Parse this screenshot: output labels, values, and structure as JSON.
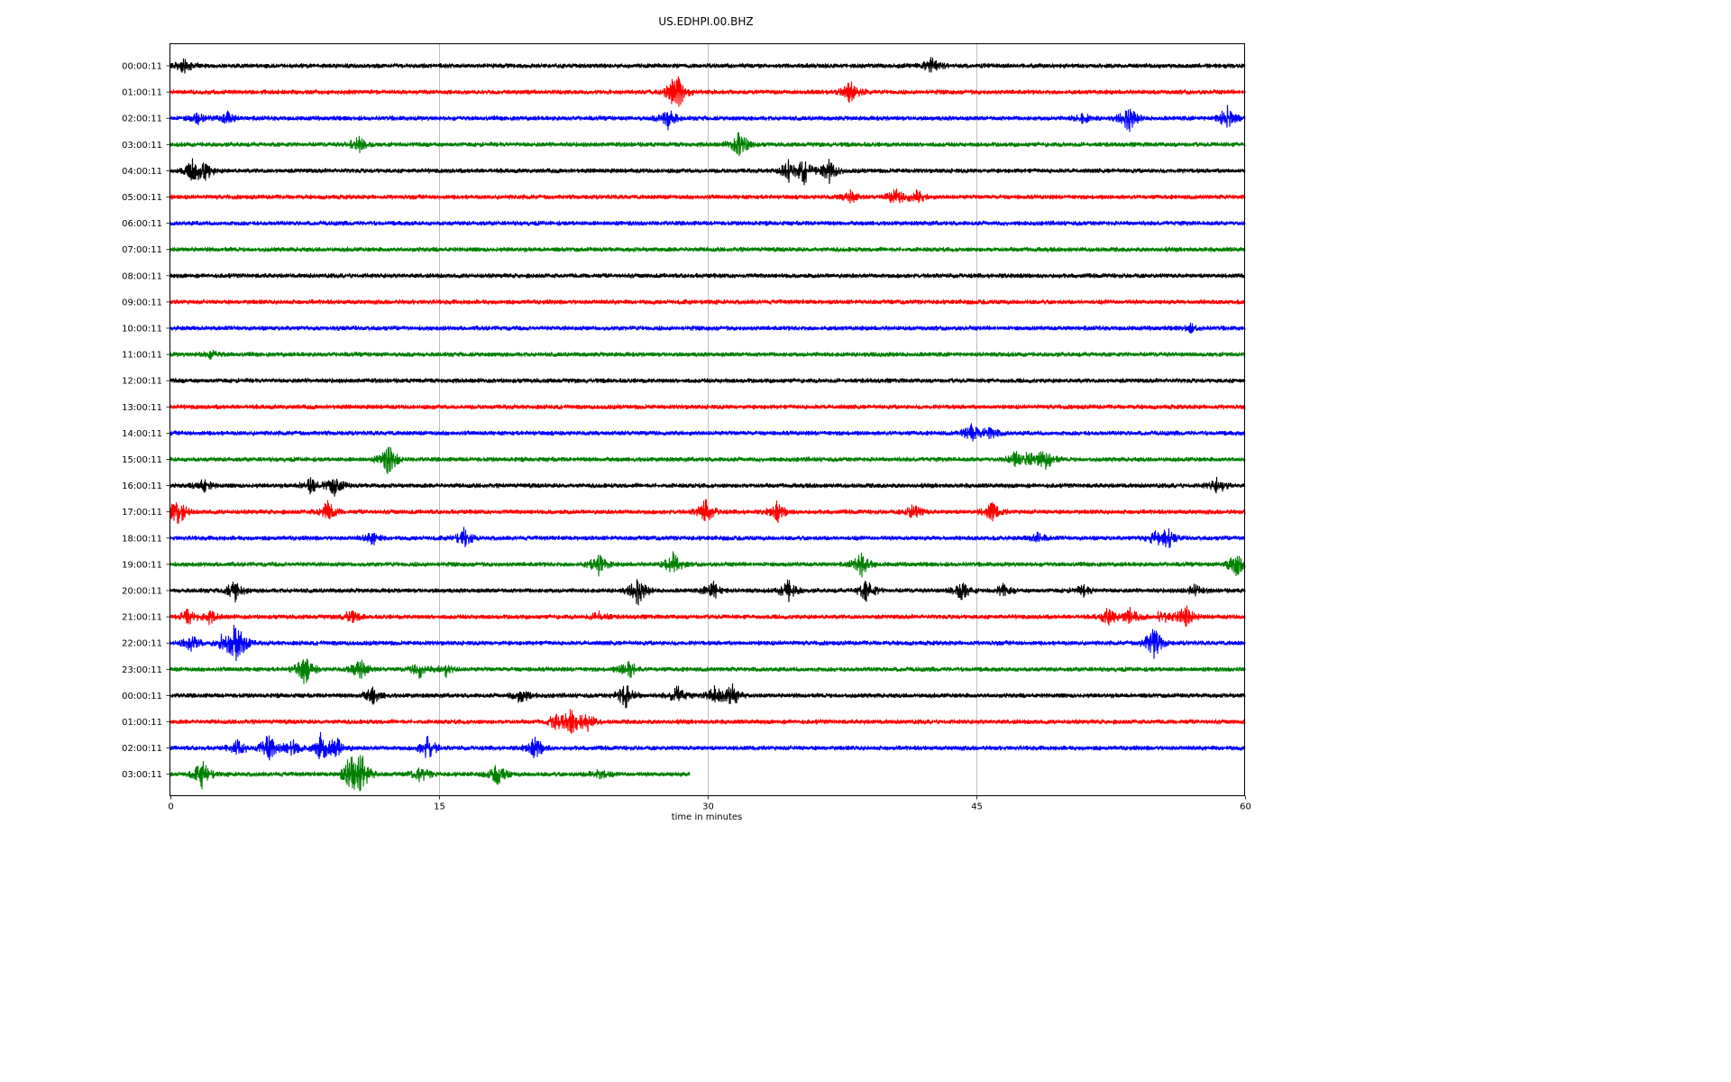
{
  "chart_data": {
    "type": "line",
    "title": "US.EDHPI.00.BHZ",
    "xlabel": "time in minutes",
    "ylabel": "",
    "xlim": [
      0,
      60
    ],
    "x_ticks": [
      0,
      15,
      30,
      45,
      60
    ],
    "x_tick_labels": [
      "0",
      "15",
      "30",
      "45",
      "60"
    ],
    "grid": "vertical lines at 15, 30, 45",
    "legend": "none",
    "color_cycle": [
      "#000000",
      "#ff0000",
      "#0000ff",
      "#008000"
    ],
    "rows": [
      {
        "label": "00:00:11",
        "color": "#000000",
        "end_minute": 60,
        "events": [
          [
            0.8,
            10
          ],
          [
            42.5,
            9
          ]
        ]
      },
      {
        "label": "01:00:11",
        "color": "#ff0000",
        "end_minute": 60,
        "events": [
          [
            28.0,
            9
          ],
          [
            28.4,
            15
          ],
          [
            38.0,
            13
          ]
        ]
      },
      {
        "label": "02:00:11",
        "color": "#0000ff",
        "end_minute": 60,
        "events": [
          [
            1.5,
            6
          ],
          [
            3.2,
            7
          ],
          [
            27.8,
            12
          ],
          [
            51.0,
            6
          ],
          [
            53.5,
            15
          ],
          [
            59.0,
            14
          ]
        ]
      },
      {
        "label": "03:00:11",
        "color": "#008000",
        "end_minute": 60,
        "events": [
          [
            10.5,
            10
          ],
          [
            31.8,
            16
          ]
        ]
      },
      {
        "label": "04:00:11",
        "color": "#000000",
        "end_minute": 60,
        "events": [
          [
            1.3,
            13
          ],
          [
            2.0,
            9
          ],
          [
            34.5,
            11
          ],
          [
            35.4,
            14
          ],
          [
            36.8,
            13
          ]
        ]
      },
      {
        "label": "05:00:11",
        "color": "#ff0000",
        "end_minute": 60,
        "events": [
          [
            38.0,
            7
          ],
          [
            40.5,
            10
          ],
          [
            41.7,
            8
          ]
        ]
      },
      {
        "label": "06:00:11",
        "color": "#0000ff",
        "end_minute": 60,
        "events": []
      },
      {
        "label": "07:00:11",
        "color": "#008000",
        "end_minute": 60,
        "events": []
      },
      {
        "label": "08:00:11",
        "color": "#000000",
        "end_minute": 60,
        "events": []
      },
      {
        "label": "09:00:11",
        "color": "#ff0000",
        "end_minute": 60,
        "events": []
      },
      {
        "label": "10:00:11",
        "color": "#0000ff",
        "end_minute": 60,
        "events": [
          [
            57.0,
            4
          ]
        ]
      },
      {
        "label": "11:00:11",
        "color": "#008000",
        "end_minute": 60,
        "events": [
          [
            2.3,
            4
          ]
        ]
      },
      {
        "label": "12:00:11",
        "color": "#000000",
        "end_minute": 60,
        "events": []
      },
      {
        "label": "13:00:11",
        "color": "#ff0000",
        "end_minute": 60,
        "events": []
      },
      {
        "label": "14:00:11",
        "color": "#0000ff",
        "end_minute": 60,
        "events": [
          [
            44.7,
            10
          ],
          [
            45.8,
            7
          ]
        ]
      },
      {
        "label": "15:00:11",
        "color": "#008000",
        "end_minute": 60,
        "events": [
          [
            12.2,
            18
          ],
          [
            47.2,
            8
          ],
          [
            48.0,
            9
          ],
          [
            48.9,
            12
          ]
        ]
      },
      {
        "label": "16:00:11",
        "color": "#000000",
        "end_minute": 60,
        "events": [
          [
            1.9,
            7
          ],
          [
            7.8,
            9
          ],
          [
            9.2,
            12
          ],
          [
            58.5,
            9
          ]
        ]
      },
      {
        "label": "17:00:11",
        "color": "#ff0000",
        "end_minute": 60,
        "events": [
          [
            0.4,
            18
          ],
          [
            8.8,
            12
          ],
          [
            29.9,
            14
          ],
          [
            33.9,
            11
          ],
          [
            41.5,
            9
          ],
          [
            45.9,
            11
          ]
        ]
      },
      {
        "label": "18:00:11",
        "color": "#0000ff",
        "end_minute": 60,
        "events": [
          [
            11.3,
            7
          ],
          [
            16.4,
            10
          ],
          [
            48.5,
            6
          ],
          [
            55.0,
            8
          ],
          [
            55.7,
            10
          ]
        ]
      },
      {
        "label": "19:00:11",
        "color": "#008000",
        "end_minute": 60,
        "events": [
          [
            23.9,
            14
          ],
          [
            28.1,
            15
          ],
          [
            38.6,
            13
          ],
          [
            59.5,
            14
          ]
        ]
      },
      {
        "label": "20:00:11",
        "color": "#000000",
        "end_minute": 60,
        "events": [
          [
            3.6,
            12
          ],
          [
            26.1,
            16
          ],
          [
            30.3,
            11
          ],
          [
            34.5,
            12
          ],
          [
            38.9,
            14
          ],
          [
            44.2,
            12
          ],
          [
            46.5,
            7
          ],
          [
            51.0,
            6
          ],
          [
            57.2,
            6
          ]
        ]
      },
      {
        "label": "21:00:11",
        "color": "#ff0000",
        "end_minute": 60,
        "events": [
          [
            1.0,
            8
          ],
          [
            2.2,
            7
          ],
          [
            10.1,
            7
          ],
          [
            24.0,
            6
          ],
          [
            52.4,
            10
          ],
          [
            53.6,
            9
          ],
          [
            55.4,
            8
          ],
          [
            56.7,
            13
          ]
        ]
      },
      {
        "label": "22:00:11",
        "color": "#0000ff",
        "end_minute": 60,
        "events": [
          [
            1.2,
            9
          ],
          [
            2.9,
            8
          ],
          [
            3.6,
            17
          ],
          [
            4.0,
            10
          ],
          [
            54.9,
            19
          ]
        ]
      },
      {
        "label": "23:00:11",
        "color": "#008000",
        "end_minute": 60,
        "events": [
          [
            7.5,
            18
          ],
          [
            10.6,
            13
          ],
          [
            13.9,
            9
          ],
          [
            15.4,
            7
          ],
          [
            25.6,
            12
          ]
        ]
      },
      {
        "label": "00:00:11",
        "color": "#000000",
        "end_minute": 60,
        "events": [
          [
            11.3,
            9
          ],
          [
            19.6,
            9
          ],
          [
            25.4,
            15
          ],
          [
            28.3,
            11
          ],
          [
            30.4,
            10
          ],
          [
            31.4,
            13
          ]
        ]
      },
      {
        "label": "01:00:11",
        "color": "#ff0000",
        "end_minute": 60,
        "events": [
          [
            21.5,
            9
          ],
          [
            22.4,
            14
          ],
          [
            23.3,
            10
          ]
        ]
      },
      {
        "label": "02:00:11",
        "color": "#0000ff",
        "end_minute": 60,
        "events": [
          [
            3.8,
            9
          ],
          [
            5.5,
            17
          ],
          [
            6.8,
            10
          ],
          [
            8.4,
            15
          ],
          [
            9.3,
            12
          ],
          [
            14.4,
            14
          ],
          [
            20.4,
            13
          ]
        ]
      },
      {
        "label": "03:00:11",
        "color": "#008000",
        "end_minute": 29,
        "events": [
          [
            1.8,
            16
          ],
          [
            10.1,
            22
          ],
          [
            10.7,
            20
          ],
          [
            14.0,
            10
          ],
          [
            18.3,
            12
          ],
          [
            23.9,
            8
          ]
        ]
      }
    ]
  }
}
